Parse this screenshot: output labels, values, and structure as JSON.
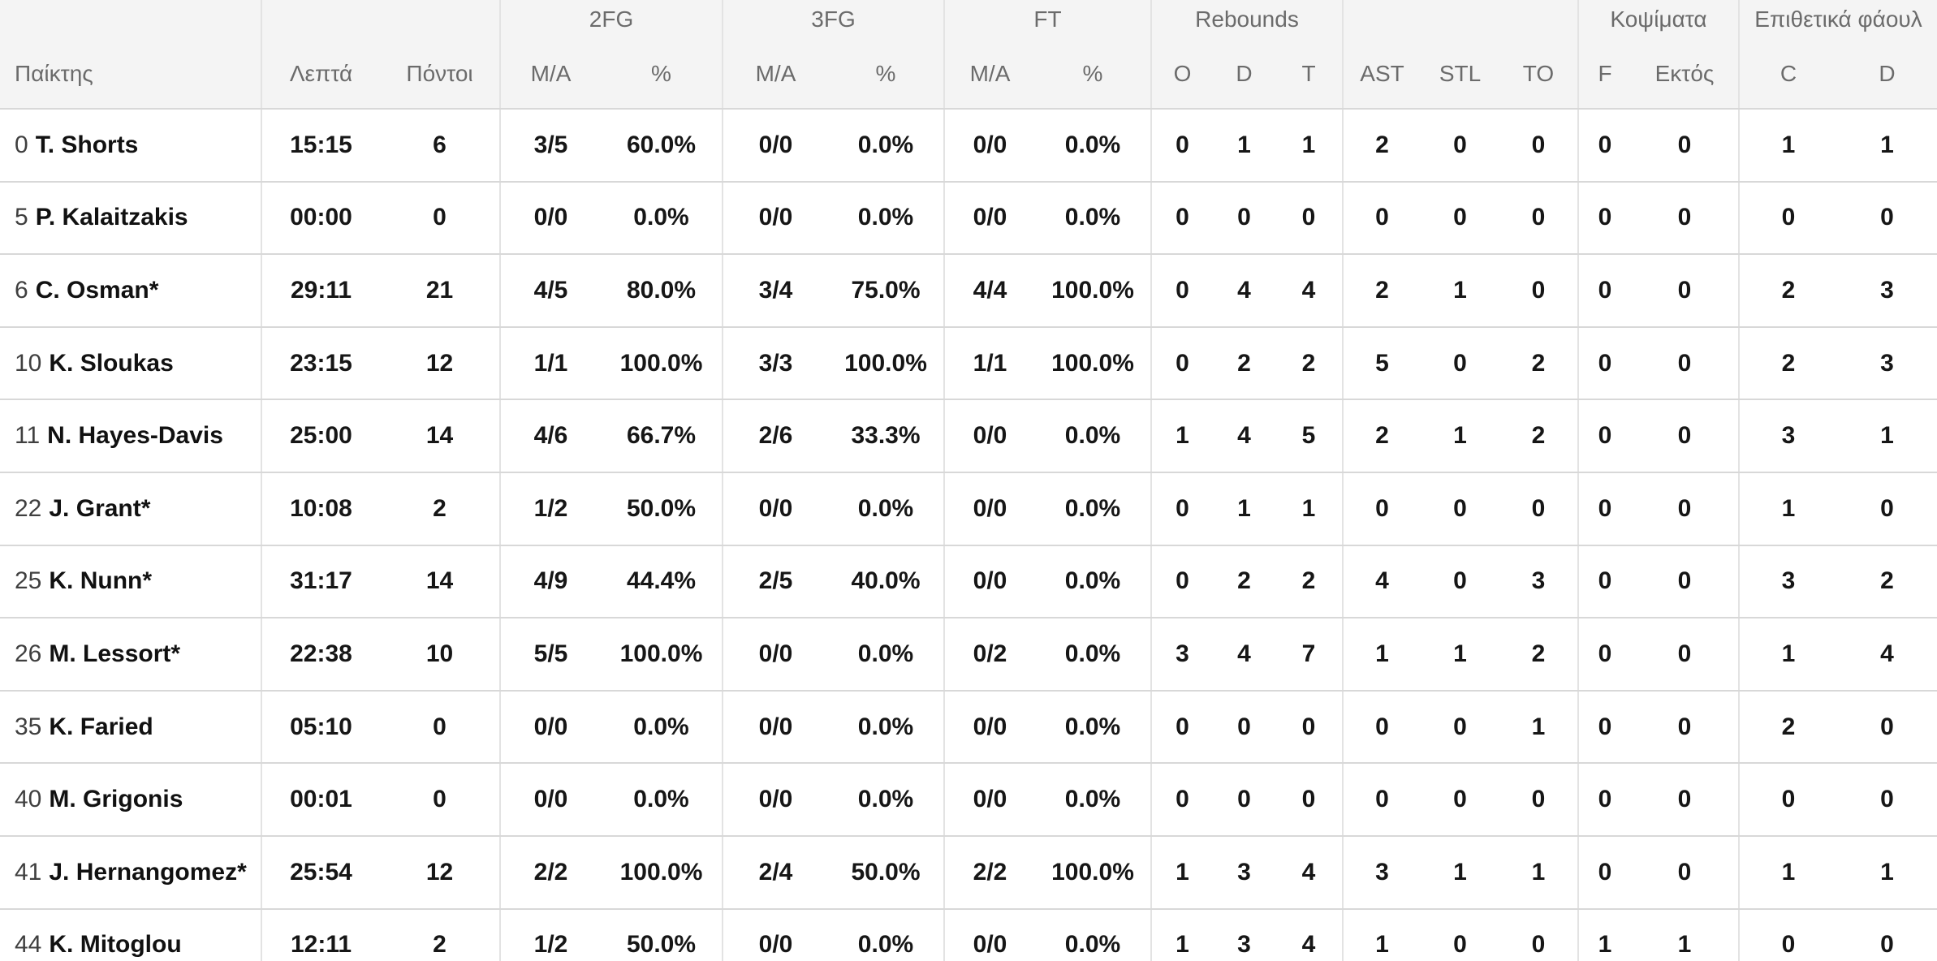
{
  "table": {
    "header": {
      "player": "Παίκτης",
      "groups": [
        {
          "label": "2FG"
        },
        {
          "label": "3FG"
        },
        {
          "label": "FT"
        },
        {
          "label": "Rebounds"
        },
        {
          "label": "Κοψίματα"
        },
        {
          "label": "Επιθετικά φάουλ"
        }
      ],
      "cols": [
        "Λεπτά",
        "Πόντοι",
        "M/A",
        "%",
        "M/A",
        "%",
        "M/A",
        "%",
        "O",
        "D",
        "T",
        "AST",
        "STL",
        "TO",
        "F",
        "Εκτός",
        "C",
        "D"
      ]
    },
    "rows": [
      {
        "num": "0",
        "name": "T. Shorts",
        "cells": [
          "15:15",
          "6",
          "3/5",
          "60.0%",
          "0/0",
          "0.0%",
          "0/0",
          "0.0%",
          "0",
          "1",
          "1",
          "2",
          "0",
          "0",
          "0",
          "0",
          "1",
          "1"
        ]
      },
      {
        "num": "5",
        "name": "P. Kalaitzakis",
        "cells": [
          "00:00",
          "0",
          "0/0",
          "0.0%",
          "0/0",
          "0.0%",
          "0/0",
          "0.0%",
          "0",
          "0",
          "0",
          "0",
          "0",
          "0",
          "0",
          "0",
          "0",
          "0"
        ]
      },
      {
        "num": "6",
        "name": "C. Osman*",
        "cells": [
          "29:11",
          "21",
          "4/5",
          "80.0%",
          "3/4",
          "75.0%",
          "4/4",
          "100.0%",
          "0",
          "4",
          "4",
          "2",
          "1",
          "0",
          "0",
          "0",
          "2",
          "3"
        ]
      },
      {
        "num": "10",
        "name": "K. Sloukas",
        "cells": [
          "23:15",
          "12",
          "1/1",
          "100.0%",
          "3/3",
          "100.0%",
          "1/1",
          "100.0%",
          "0",
          "2",
          "2",
          "5",
          "0",
          "2",
          "0",
          "0",
          "2",
          "3"
        ]
      },
      {
        "num": "11",
        "name": "N. Hayes-Davis",
        "cells": [
          "25:00",
          "14",
          "4/6",
          "66.7%",
          "2/6",
          "33.3%",
          "0/0",
          "0.0%",
          "1",
          "4",
          "5",
          "2",
          "1",
          "2",
          "0",
          "0",
          "3",
          "1"
        ]
      },
      {
        "num": "22",
        "name": "J. Grant*",
        "cells": [
          "10:08",
          "2",
          "1/2",
          "50.0%",
          "0/0",
          "0.0%",
          "0/0",
          "0.0%",
          "0",
          "1",
          "1",
          "0",
          "0",
          "0",
          "0",
          "0",
          "1",
          "0"
        ]
      },
      {
        "num": "25",
        "name": "K. Nunn*",
        "cells": [
          "31:17",
          "14",
          "4/9",
          "44.4%",
          "2/5",
          "40.0%",
          "0/0",
          "0.0%",
          "0",
          "2",
          "2",
          "4",
          "0",
          "3",
          "0",
          "0",
          "3",
          "2"
        ]
      },
      {
        "num": "26",
        "name": "M. Lessort*",
        "cells": [
          "22:38",
          "10",
          "5/5",
          "100.0%",
          "0/0",
          "0.0%",
          "0/2",
          "0.0%",
          "3",
          "4",
          "7",
          "1",
          "1",
          "2",
          "0",
          "0",
          "1",
          "4"
        ]
      },
      {
        "num": "35",
        "name": "K. Faried",
        "cells": [
          "05:10",
          "0",
          "0/0",
          "0.0%",
          "0/0",
          "0.0%",
          "0/0",
          "0.0%",
          "0",
          "0",
          "0",
          "0",
          "0",
          "1",
          "0",
          "0",
          "2",
          "0"
        ]
      },
      {
        "num": "40",
        "name": "M. Grigonis",
        "cells": [
          "00:01",
          "0",
          "0/0",
          "0.0%",
          "0/0",
          "0.0%",
          "0/0",
          "0.0%",
          "0",
          "0",
          "0",
          "0",
          "0",
          "0",
          "0",
          "0",
          "0",
          "0"
        ]
      },
      {
        "num": "41",
        "name": "J. Hernangomez*",
        "cells": [
          "25:54",
          "12",
          "2/2",
          "100.0%",
          "2/4",
          "50.0%",
          "2/2",
          "100.0%",
          "1",
          "3",
          "4",
          "3",
          "1",
          "1",
          "0",
          "0",
          "1",
          "1"
        ]
      },
      {
        "num": "44",
        "name": "K. Mitoglou",
        "cells": [
          "12:11",
          "2",
          "1/2",
          "50.0%",
          "0/0",
          "0.0%",
          "0/0",
          "0.0%",
          "1",
          "3",
          "4",
          "1",
          "0",
          "0",
          "1",
          "1",
          "0",
          "0"
        ]
      }
    ],
    "colors": {
      "header_bg": "#f4f4f4",
      "header_text": "#6b6b6b",
      "row_text": "#161616",
      "row_border": "#d8d8d8",
      "group_border": "#e3e3e3"
    }
  }
}
